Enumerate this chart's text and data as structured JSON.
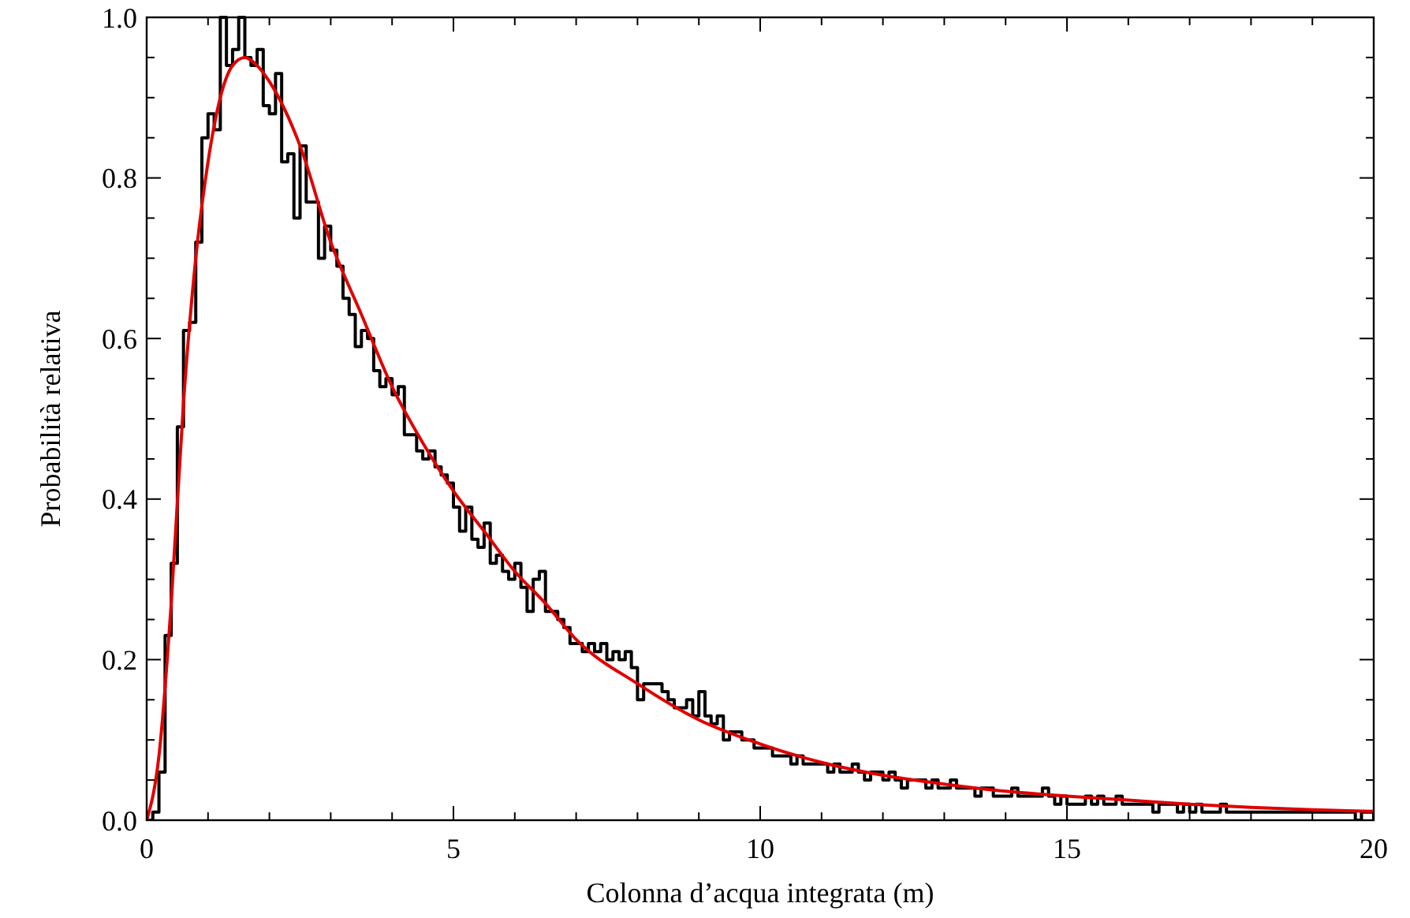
{
  "chart_data": {
    "type": "histogram",
    "xlabel": "Colonna d’acqua integrata (m)",
    "ylabel": "Probabilità relativa",
    "xlim": [
      0,
      20
    ],
    "ylim": [
      0,
      1.0
    ],
    "xticks": [
      0,
      {
        "value": 1,
        "label": null
      },
      {
        "value": 2,
        "label": null
      },
      {
        "value": 3,
        "label": null
      },
      {
        "value": 4,
        "label": null
      },
      5,
      {
        "value": 6,
        "label": null
      },
      {
        "value": 7,
        "label": null
      },
      {
        "value": 8,
        "label": null
      },
      {
        "value": 9,
        "label": null
      },
      10,
      {
        "value": 11,
        "label": null
      },
      {
        "value": 12,
        "label": null
      },
      {
        "value": 13,
        "label": null
      },
      {
        "value": 14,
        "label": null
      },
      15,
      {
        "value": 16,
        "label": null
      },
      {
        "value": 17,
        "label": null
      },
      {
        "value": 18,
        "label": null
      },
      {
        "value": 19,
        "label": null
      },
      20
    ],
    "yticks": [
      {
        "value": 0,
        "label": "0.0"
      },
      {
        "value": 0.05,
        "label": null
      },
      {
        "value": 0.1,
        "label": null
      },
      {
        "value": 0.15,
        "label": null
      },
      0.2,
      {
        "value": 0.25,
        "label": null
      },
      {
        "value": 0.3,
        "label": null
      },
      {
        "value": 0.35,
        "label": null
      },
      0.4,
      {
        "value": 0.45,
        "label": null
      },
      {
        "value": 0.5,
        "label": null
      },
      {
        "value": 0.55,
        "label": null
      },
      0.6,
      {
        "value": 0.65,
        "label": null
      },
      {
        "value": 0.7,
        "label": null
      },
      {
        "value": 0.75,
        "label": null
      },
      0.8,
      {
        "value": 0.85,
        "label": null
      },
      {
        "value": 0.9,
        "label": null
      },
      {
        "value": 0.95,
        "label": null
      },
      {
        "value": 1.0,
        "label": "1.0"
      }
    ],
    "grid": false,
    "series": [
      {
        "color": "#000000",
        "bins": [
          0,
          0.1,
          0.2,
          0.3,
          0.4,
          0.5,
          0.6,
          0.7,
          0.8,
          0.9,
          1,
          1.1,
          1.2,
          1.3,
          1.4,
          1.5,
          1.6,
          1.7,
          1.8,
          1.9,
          2,
          2.1,
          2.2,
          2.3,
          2.4,
          2.5,
          2.6,
          2.7,
          2.8,
          2.9,
          3,
          3.1,
          3.2,
          3.3,
          3.4,
          3.5,
          3.6,
          3.7,
          3.8,
          3.9,
          4,
          4.1,
          4.2,
          4.3,
          4.4,
          4.5,
          4.6,
          4.7,
          4.8,
          4.9,
          5,
          5.1,
          5.2,
          5.3,
          5.4,
          5.5,
          5.6,
          5.7,
          5.8,
          5.9,
          6,
          6.1,
          6.2,
          6.3,
          6.4,
          6.5,
          6.6,
          6.7,
          6.8,
          6.9,
          7,
          7.1,
          7.2,
          7.3,
          7.4,
          7.5,
          7.6,
          7.7,
          7.8,
          7.9,
          8,
          8.1,
          8.2,
          8.3,
          8.4,
          8.5,
          8.6,
          8.7,
          8.8,
          8.9,
          9,
          9.1,
          9.2,
          9.3,
          9.4,
          9.5,
          9.6,
          9.7,
          9.8,
          9.9,
          10,
          10.1,
          10.2,
          10.3,
          10.4,
          10.5,
          10.6,
          10.7,
          10.8,
          10.9,
          11,
          11.1,
          11.2,
          11.3,
          11.4,
          11.5,
          11.6,
          11.7,
          11.8,
          11.9,
          12,
          12.1,
          12.2,
          12.3,
          12.4,
          12.5,
          12.6,
          12.7,
          12.8,
          12.9,
          13,
          13.1,
          13.2,
          13.3,
          13.4,
          13.5,
          13.6,
          13.7,
          13.8,
          13.9,
          14,
          14.1,
          14.2,
          14.3,
          14.4,
          14.5,
          14.6,
          14.7,
          14.8,
          14.9,
          15,
          15.1,
          15.2,
          15.3,
          15.4,
          15.5,
          15.6,
          15.7,
          15.8,
          15.9,
          16,
          16.1,
          16.2,
          16.3,
          16.4,
          16.5,
          16.6,
          16.7,
          16.8,
          16.9,
          17,
          17.1,
          17.2,
          17.3,
          17.4,
          17.5,
          17.6,
          17.7,
          17.8,
          17.9,
          18,
          18.1,
          18.2,
          18.3,
          18.4,
          18.5,
          18.6,
          18.7,
          18.8,
          18.9,
          19,
          19.1,
          19.2,
          19.3,
          19.4,
          19.5,
          19.6,
          19.7,
          19.8,
          19.9,
          20
        ],
        "values": [
          0,
          0.01,
          0.06,
          0.23,
          0.32,
          0.49,
          0.61,
          0.62,
          0.72,
          0.85,
          0.88,
          0.86,
          1.0,
          0.94,
          0.96,
          1.0,
          0.95,
          0.94,
          0.96,
          0.89,
          0.88,
          0.93,
          0.82,
          0.83,
          0.75,
          0.84,
          0.77,
          0.77,
          0.7,
          0.74,
          0.71,
          0.69,
          0.65,
          0.63,
          0.59,
          0.61,
          0.6,
          0.56,
          0.54,
          0.55,
          0.53,
          0.54,
          0.48,
          0.48,
          0.46,
          0.45,
          0.46,
          0.44,
          0.43,
          0.42,
          0.39,
          0.36,
          0.39,
          0.35,
          0.34,
          0.37,
          0.32,
          0.33,
          0.31,
          0.3,
          0.32,
          0.29,
          0.26,
          0.3,
          0.31,
          0.26,
          0.26,
          0.25,
          0.24,
          0.22,
          0.22,
          0.21,
          0.22,
          0.21,
          0.22,
          0.2,
          0.21,
          0.2,
          0.21,
          0.19,
          0.15,
          0.17,
          0.17,
          0.17,
          0.16,
          0.15,
          0.14,
          0.14,
          0.15,
          0.13,
          0.16,
          0.13,
          0.12,
          0.13,
          0.1,
          0.11,
          0.11,
          0.1,
          0.1,
          0.09,
          0.09,
          0.09,
          0.08,
          0.08,
          0.08,
          0.07,
          0.08,
          0.07,
          0.07,
          0.07,
          0.07,
          0.06,
          0.07,
          0.06,
          0.06,
          0.07,
          0.06,
          0.05,
          0.06,
          0.06,
          0.05,
          0.06,
          0.05,
          0.04,
          0.05,
          0.05,
          0.05,
          0.04,
          0.05,
          0.04,
          0.04,
          0.05,
          0.04,
          0.04,
          0.04,
          0.03,
          0.04,
          0.04,
          0.03,
          0.03,
          0.03,
          0.04,
          0.03,
          0.03,
          0.03,
          0.03,
          0.04,
          0.03,
          0.02,
          0.03,
          0.02,
          0.02,
          0.02,
          0.03,
          0.02,
          0.03,
          0.02,
          0.02,
          0.03,
          0.02,
          0.02,
          0.02,
          0.02,
          0.02,
          0.01,
          0.02,
          0.02,
          0.02,
          0.01,
          0.02,
          0.01,
          0.02,
          0.01,
          0.01,
          0.01,
          0.02,
          0.01,
          0.01,
          0.01,
          0.01,
          0.01,
          0.01,
          0.01,
          0.01,
          0.01,
          0.01,
          0.01,
          0.01,
          0.01,
          0.01,
          0.01,
          0.01,
          0.01,
          0.01,
          0.01,
          0.01,
          0.01,
          0,
          0.01,
          0.01
        ]
      },
      {
        "type": "line",
        "color": "#e00000",
        "x": [
          0,
          0.2,
          0.4,
          0.6,
          0.8,
          1.0,
          1.2,
          1.4,
          1.6,
          1.8,
          2.0,
          2.5,
          3.0,
          3.5,
          4.0,
          4.5,
          5.0,
          5.5,
          6.0,
          6.5,
          7.0,
          8,
          9,
          10,
          11,
          12,
          13,
          14,
          15,
          16,
          17,
          18,
          19,
          20
        ],
        "values": [
          0,
          0.08,
          0.27,
          0.52,
          0.7,
          0.82,
          0.9,
          0.94,
          0.95,
          0.94,
          0.92,
          0.84,
          0.72,
          0.63,
          0.54,
          0.47,
          0.41,
          0.36,
          0.31,
          0.27,
          0.225,
          0.17,
          0.125,
          0.095,
          0.072,
          0.056,
          0.045,
          0.036,
          0.03,
          0.025,
          0.02,
          0.016,
          0.013,
          0.011
        ]
      }
    ]
  }
}
